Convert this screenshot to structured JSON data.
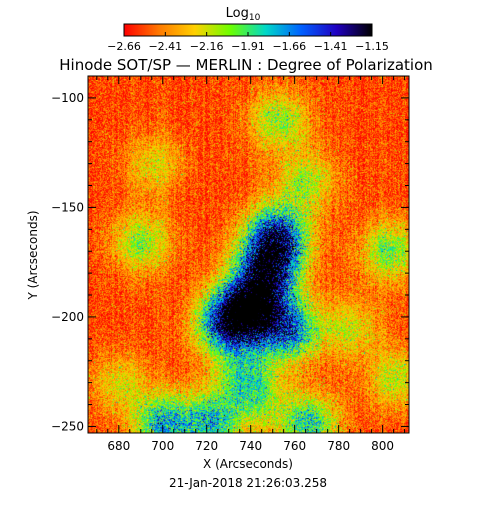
{
  "chart_data": {
    "type": "heatmap",
    "title": "Hinode SOT/SP — MERLIN : Degree of Polarization",
    "xlabel": "X (Arcseconds)",
    "ylabel": "Y (Arcseconds)",
    "timestamp": "21-Jan-2018 21:26:03.258",
    "xlim": [
      666,
      812
    ],
    "ylim": [
      -253,
      -90
    ],
    "x_ticks": [
      680,
      700,
      720,
      740,
      760,
      780,
      800
    ],
    "y_ticks": [
      -100,
      -150,
      -200,
      -250
    ],
    "colorbar": {
      "label_main": "Log",
      "label_sub": "10",
      "range": [
        -2.66,
        -1.15
      ],
      "ticks": [
        "−2.66",
        "−2.41",
        "−2.16",
        "−1.91",
        "−1.66",
        "−1.41",
        "−1.15"
      ],
      "colormap": [
        "#ff0000",
        "#ff7a00",
        "#ffd000",
        "#6cff00",
        "#00d8c8",
        "#0060ff",
        "#2000c0",
        "#000000"
      ]
    },
    "background_level": -2.55,
    "features": [
      {
        "x": 748,
        "y": -175,
        "peak": -1.35
      },
      {
        "x": 752,
        "y": -162,
        "peak": -1.45
      },
      {
        "x": 738,
        "y": -198,
        "peak": -1.38
      },
      {
        "x": 728,
        "y": -203,
        "peak": -1.55
      },
      {
        "x": 757,
        "y": -206,
        "peak": -1.55
      },
      {
        "x": 744,
        "y": -190,
        "peak": -1.6
      },
      {
        "x": 736,
        "y": -225,
        "peak": -2.05
      },
      {
        "x": 742,
        "y": -237,
        "peak": -2.1
      },
      {
        "x": 722,
        "y": -248,
        "peak": -1.75
      },
      {
        "x": 700,
        "y": -249,
        "peak": -1.7
      },
      {
        "x": 766,
        "y": -249,
        "peak": -1.75
      },
      {
        "x": 765,
        "y": -138,
        "peak": -2.05
      },
      {
        "x": 753,
        "y": -110,
        "peak": -2.0
      },
      {
        "x": 690,
        "y": -166,
        "peak": -2.0
      },
      {
        "x": 803,
        "y": -170,
        "peak": -1.95
      },
      {
        "x": 806,
        "y": -228,
        "peak": -2.1
      },
      {
        "x": 696,
        "y": -130,
        "peak": -2.2
      },
      {
        "x": 785,
        "y": -205,
        "peak": -2.15
      },
      {
        "x": 680,
        "y": -230,
        "peak": -2.2
      }
    ]
  }
}
